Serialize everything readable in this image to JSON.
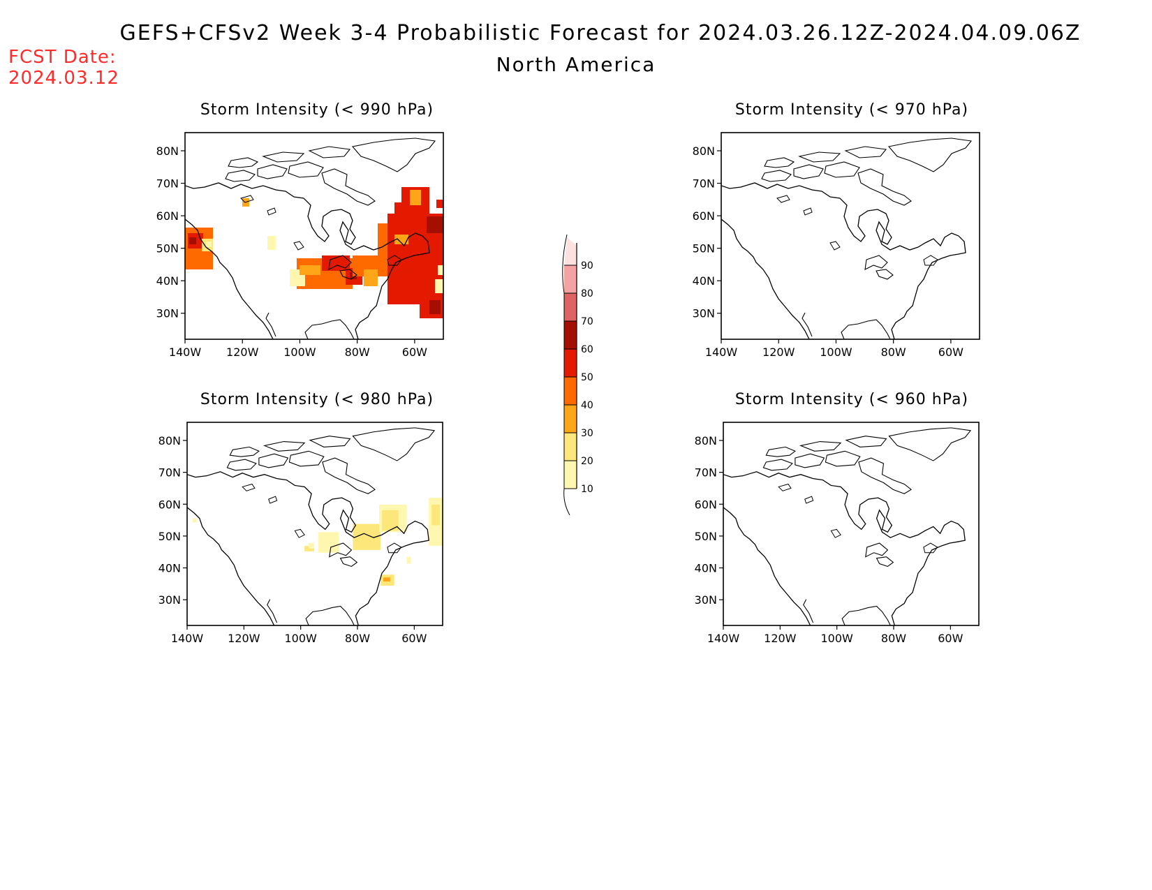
{
  "header": {
    "title": "GEFS+CFSv2 Week 3-4 Probabilistic Forecast for 2024.03.26.12Z-2024.04.09.06Z",
    "region": "North America",
    "fcst_label": "FCST Date:",
    "fcst_date": "2024.03.12"
  },
  "colors": {
    "fcst_text": "#ff2a2a",
    "levels": [
      "#fff7b0",
      "#fde77a",
      "#fea617",
      "#fe6a00",
      "#e31a00",
      "#a50f00",
      "#de6464",
      "#f4a3a3",
      "#fde0e0"
    ]
  },
  "colorbar": {
    "labels": [
      "10",
      "20",
      "30",
      "40",
      "50",
      "60",
      "70",
      "80",
      "90"
    ]
  },
  "axes": {
    "lat_labels": [
      "80N",
      "70N",
      "60N",
      "50N",
      "40N",
      "30N"
    ],
    "lon_labels": [
      "140W",
      "120W",
      "100W",
      "80W",
      "60W"
    ]
  },
  "panels": [
    {
      "id": "p990",
      "title": "Storm Intensity (< 990 hPa)"
    },
    {
      "id": "p970",
      "title": "Storm Intensity (< 970 hPa)"
    },
    {
      "id": "p980",
      "title": "Storm Intensity (< 980 hPa)"
    },
    {
      "id": "p960",
      "title": "Storm Intensity (< 960 hPa)"
    }
  ]
}
